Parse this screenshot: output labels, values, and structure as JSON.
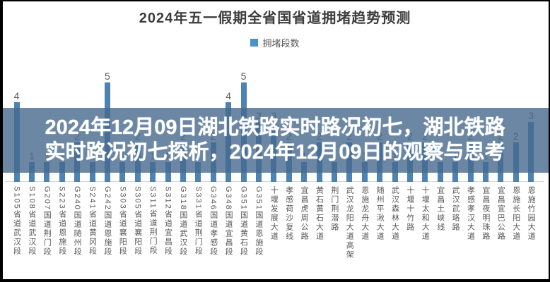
{
  "chart_data": {
    "type": "bar",
    "title": "2024年五一假期全省国省道拥堵趋势预测",
    "legend": [
      {
        "name": "拥堵段数",
        "color": "#4b90c9"
      }
    ],
    "legend_position": "top",
    "grid": false,
    "ylim": [
      0,
      5.6
    ],
    "bar_color": "#4d82b2",
    "value_label_color": "#595959",
    "categories": [
      "S105省道武汉段",
      "S108省道武汉段",
      "G207国道荆门段",
      "S223省道恩施段",
      "G240国道随州段",
      "S241省道黄冈段",
      "G242国道恩施段",
      "S303省道襄阳段",
      "S305省道襄阳段",
      "S311省道荆门段",
      "S312省道宜昌段",
      "G318国道武汉段",
      "S331省道荆门段",
      "G346国道孝感段",
      "G348国道宜昌段",
      "G351国道黄石段",
      "G351国道恩施段",
      "十堰发展大道",
      "孝感荷沙复线",
      "宜昌虎周公路",
      "黄石黄石大道",
      "荆门荆潜路",
      "武汉龙阳大道高架",
      "恩施龙舟大道",
      "随州平湫大道",
      "武汉森林大道",
      "十堰十竹路",
      "十堰太和大道",
      "宜昌土峡线",
      "武汉武珞路",
      "孝感孝汉大道",
      "宜昌夜明珠路",
      "宜昌宜巴公路",
      "恩施长阳大道",
      "恩施竹园大道"
    ],
    "values": [
      4,
      1,
      1,
      1,
      2,
      1,
      5,
      1,
      2,
      1,
      1,
      2,
      1,
      2,
      4,
      5,
      3,
      3,
      2,
      1,
      2,
      1,
      2,
      1,
      2,
      1,
      2,
      2,
      1,
      1,
      2,
      1,
      2,
      2,
      3
    ]
  },
  "overlay": {
    "line1": "2024年12月09日湖北铁路实时路况初七，湖北铁路",
    "line2": "实时路况初七探析，2024年12月09日的观察与思考",
    "background_color": "#46698d",
    "background_opacity": 0.8,
    "text_color": "#ffffff"
  }
}
